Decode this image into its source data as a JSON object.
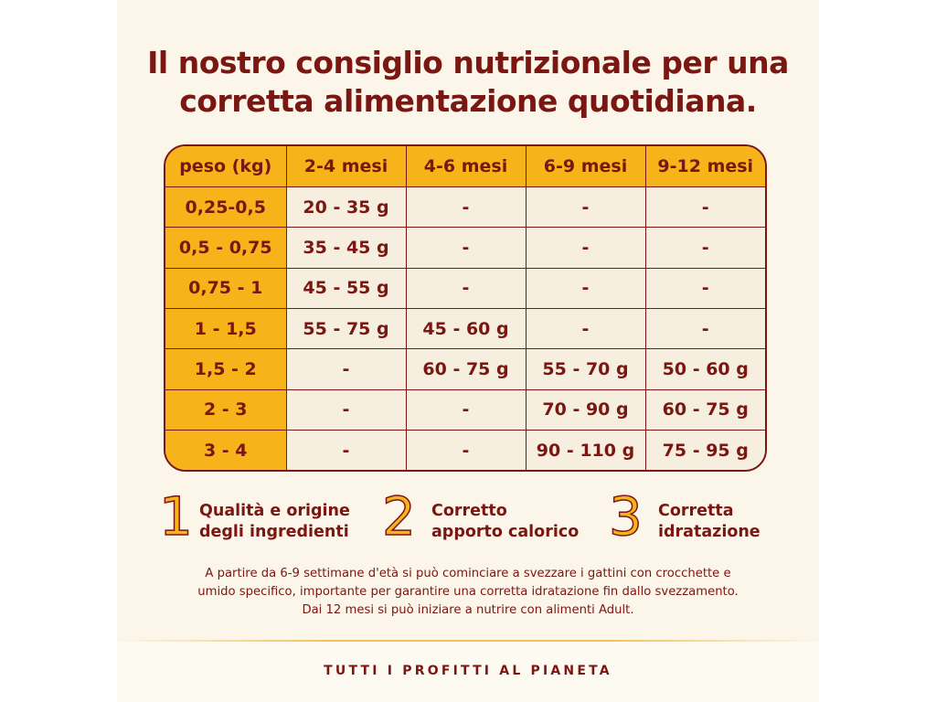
{
  "title": {
    "line1": "Il nostro consiglio nutrizionale per una",
    "line2": "corretta alimentazione quotidiana."
  },
  "table": {
    "headers": [
      "peso (kg)",
      "2-4 mesi",
      "4-6 mesi",
      "6-9 mesi",
      "9-12 mesi"
    ],
    "rows": [
      [
        "0,25-0,5",
        "20 - 35 g",
        "-",
        "-",
        "-"
      ],
      [
        "0,5 - 0,75",
        "35 - 45 g",
        "-",
        "-",
        "-"
      ],
      [
        "0,75 - 1",
        "45 - 55 g",
        "-",
        "-",
        "-"
      ],
      [
        "1 - 1,5",
        "55 - 75 g",
        "45 - 60 g",
        "-",
        "-"
      ],
      [
        "1,5 - 2",
        "-",
        "60 - 75 g",
        "55 - 70 g",
        "50 - 60 g"
      ],
      [
        "2 - 3",
        "-",
        "-",
        "70 - 90 g",
        "60 - 75 g"
      ],
      [
        "3 - 4",
        "-",
        "-",
        "90 - 110 g",
        "75 - 95 g"
      ]
    ]
  },
  "features": [
    {
      "number": "1",
      "line1": "Qualità e origine",
      "line2": "degli ingredienti"
    },
    {
      "number": "2",
      "line1": "Corretto",
      "line2": "apporto calorico"
    },
    {
      "number": "3",
      "line1": "Corretta",
      "line2": "idratazione"
    }
  ],
  "note": {
    "line1": "A partire da 6-9 settimane d'età si può cominciare a svezzare i gattini con crocchette e",
    "line2": "umido specifico, importante per garantire una corretta idratazione fin dallo svezzamento.",
    "line3": "Dai 12 mesi si può iniziare a nutrire con alimenti Adult."
  },
  "footer": {
    "text": "TUTTI I PROFITTI AL PIANETA"
  },
  "colors": {
    "primary": "#7a1712",
    "accent": "#f6b31a",
    "cell_bg": "#f6efdf",
    "page_bg": "#fcf6ea"
  }
}
